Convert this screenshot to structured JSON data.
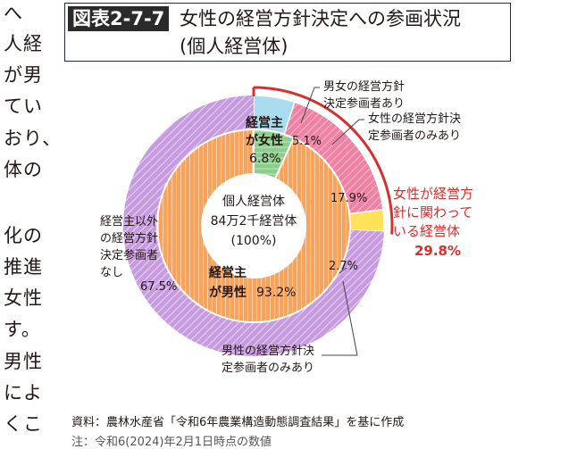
{
  "left_text": [
    "へ",
    "人経",
    "が男",
    "てい",
    "おり、",
    "体の",
    "化の",
    "推進",
    "女性",
    "す。",
    "男性",
    "によ",
    "くこ"
  ],
  "figure": {
    "label": "図表2-7-7",
    "title": "女性の経営方針決定への参画状況",
    "subtitle": "(個人経営体)"
  },
  "chart_data": {
    "type": "donut",
    "center": {
      "line1": "個人経営体",
      "line2": "84万2千経営体",
      "line3": "(100%)"
    },
    "outer_ring": [
      {
        "label_lines": [
          "男女の経営方針",
          "決定参画者あり"
        ],
        "value": 5.1,
        "value_label": "5.1%",
        "color": "#a8dcee"
      },
      {
        "label_lines": [
          "女性の経営方針決",
          "定参画者のみあり"
        ],
        "value": 17.9,
        "value_label": "17.9%",
        "color": "#ee82a4"
      },
      {
        "label_lines": [],
        "value": 2.7,
        "value_label": "2.7%",
        "color": "#ffe25a"
      },
      {
        "label_lines": [
          "男性の経営方針決",
          "定参画者のみあり"
        ],
        "value": 6.8,
        "value_label": "",
        "color": "#c79be0"
      },
      {
        "label_lines": [
          "経営主以外",
          "の経営方針",
          "決定参画者",
          "なし"
        ],
        "value": 67.5,
        "value_label": "67.5%",
        "color": "#c79be0"
      }
    ],
    "inner_ring": [
      {
        "label_lines": [
          "経営主",
          "が女性"
        ],
        "value": 6.8,
        "value_label": "6.8%",
        "color": "#8ccf8c"
      },
      {
        "label_lines": [
          "経営主",
          "が男性"
        ],
        "value": 93.2,
        "value_label": "93.2%",
        "color": "#f8a35c"
      }
    ],
    "callout": {
      "lines": [
        "女性が経営方",
        "針に関わって",
        "いる経営体"
      ],
      "value_label": "29.8%",
      "color": "#d62f2f"
    }
  },
  "source": "資料：農林水産省「令和6年農業構造動態調査結果」を基に作成",
  "cut_note": "注：令和6(2024)年2月1日時点の数値"
}
